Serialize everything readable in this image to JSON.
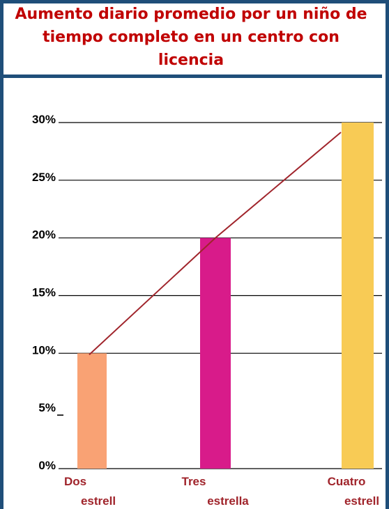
{
  "chart_data": {
    "type": "bar",
    "title": "Aumento diario promedio por un niño de tiempo completo en un centro con licencia",
    "categories": [
      {
        "line1": "Dos",
        "line2": "estrell"
      },
      {
        "line1": "Tres",
        "line2": "estrella"
      },
      {
        "line1": "Cuatro",
        "line2": "estrell"
      }
    ],
    "values": [
      10,
      20,
      30
    ],
    "colors": [
      "#f9a274",
      "#d81b8a",
      "#f8cb55"
    ],
    "trend_line_color": "#a0242b",
    "ylim": [
      0,
      30
    ],
    "yticks": [
      {
        "value": 0,
        "label": "0%"
      },
      {
        "value": 5,
        "label": "5%"
      },
      {
        "value": 10,
        "label": "10%"
      },
      {
        "value": 15,
        "label": "15%"
      },
      {
        "value": 20,
        "label": "20%"
      },
      {
        "value": 25,
        "label": "25%"
      },
      {
        "value": 30,
        "label": "30%"
      }
    ],
    "grid": true,
    "legend": "none"
  }
}
